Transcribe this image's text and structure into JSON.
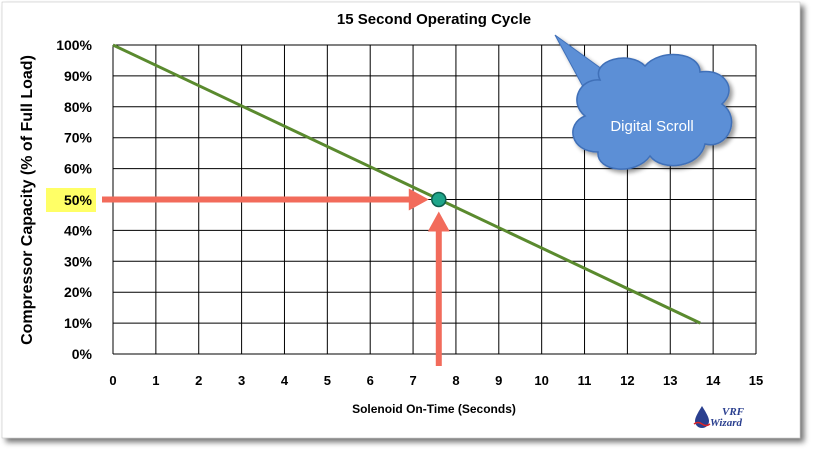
{
  "colors": {
    "line": "#5a8a2e",
    "grid": "#000000",
    "arrow": "#f26b5b",
    "marker": "#1fa58a",
    "highlight": "#ffff66",
    "cloud": "#5b8fd6",
    "cloud_edge": "#3f6fb8",
    "logo_blue": "#2a3f8f",
    "logo_red": "#d9252a"
  },
  "callout": {
    "text": "Digital Scroll"
  },
  "logo": {
    "line1": "VRF",
    "line2": "Wizard",
    "icon": "water-drop-icon"
  },
  "highlight_label": "50%",
  "chart_data": {
    "type": "line",
    "title": "15 Second Operating Cycle",
    "xlabel": "Solenoid On-Time (Seconds)",
    "ylabel": "Compressor Capacity (% of Full Load)",
    "xlim": [
      0,
      15
    ],
    "ylim": [
      0,
      100
    ],
    "x_ticks": [
      "0",
      "1",
      "2",
      "3",
      "4",
      "5",
      "6",
      "7",
      "8",
      "9",
      "10",
      "11",
      "12",
      "13",
      "14",
      "15"
    ],
    "y_ticks": [
      "0%",
      "10%",
      "20%",
      "30%",
      "40%",
      "50%",
      "60%",
      "70%",
      "80%",
      "90%",
      "100%"
    ],
    "grid": true,
    "series": [
      {
        "x": [
          0,
          13.7
        ],
        "y": [
          100,
          10
        ]
      }
    ],
    "annotations": [
      {
        "type": "point",
        "x": 7.6,
        "y": 50
      },
      {
        "type": "arrow",
        "from": "y-axis",
        "x": 7.6,
        "y": 50
      },
      {
        "type": "arrow",
        "from": "x-axis",
        "x": 7.6,
        "y": 50
      }
    ]
  }
}
